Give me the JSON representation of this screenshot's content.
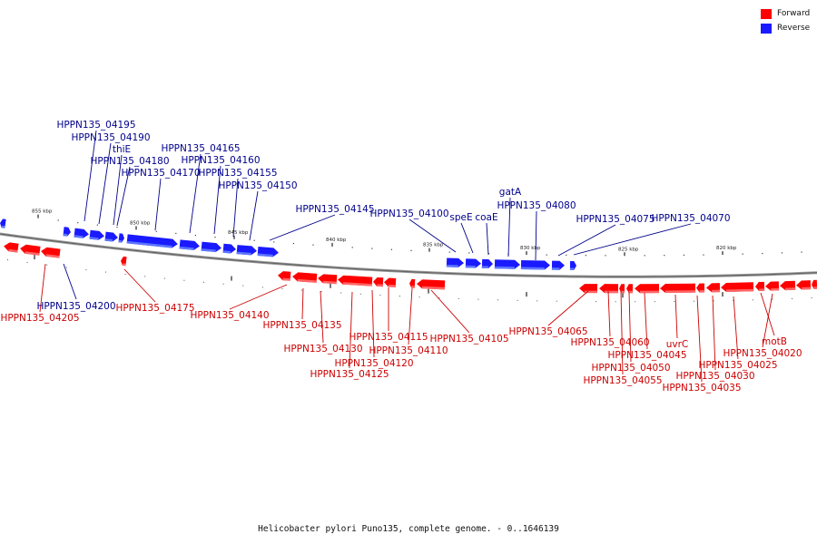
{
  "legend": {
    "forward": {
      "label": "Forward",
      "color": "#ff0000"
    },
    "reverse": {
      "label": "Reverse",
      "color": "#1a1aff"
    }
  },
  "caption": "Helicobacter pylori Puno135, complete genome. - 0..1646139",
  "scale_labels": [
    "855 kbp",
    "850 kbp",
    "845 kbp",
    "840 kbp",
    "835 kbp",
    "830 kbp",
    "825 kbp",
    "820 kbp"
  ],
  "reverse_labels": [
    "HPPN135_04195",
    "HPPN135_04190",
    "thiE",
    "HPPN135_04180",
    "HPPN135_04170",
    "HPPN135_04165",
    "HPPN135_04160",
    "HPPN135_04155",
    "HPPN135_04150",
    "HPPN135_04145",
    "HPPN135_04100",
    "speE",
    "coaE",
    "gatA",
    "HPPN135_04080",
    "HPPN135_04075",
    "HPPN135_04070",
    "HPPN135_04200"
  ],
  "forward_labels": [
    "HPPN135_04205",
    "HPPN135_04175",
    "HPPN135_04140",
    "HPPN135_04135",
    "HPPN135_04130",
    "HPPN135_04125",
    "HPPN135_04120",
    "HPPN135_04115",
    "HPPN135_04110",
    "HPPN135_04105",
    "HPPN135_04065",
    "HPPN135_04060",
    "HPPN135_04055",
    "HPPN135_04050",
    "HPPN135_04045",
    "uvrC",
    "HPPN135_04035",
    "HPPN135_04030",
    "HPPN135_04025",
    "motB",
    "HPPN135_04020"
  ]
}
